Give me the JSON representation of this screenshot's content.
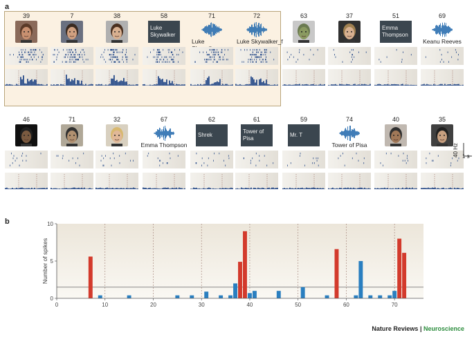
{
  "panel_a_label": "a",
  "panel_b_label": "b",
  "row1": [
    {
      "num": "39",
      "kind": "face",
      "skin": "#c89070",
      "hair": "#5a3a28",
      "bg": "#8a6a5a"
    },
    {
      "num": "7",
      "kind": "face",
      "skin": "#d0a080",
      "hair": "#3a2a20",
      "bg": "#6a7080"
    },
    {
      "num": "38",
      "kind": "face",
      "skin": "#d8b090",
      "hair": "#4a3020",
      "bg": "#b0b0b0"
    },
    {
      "num": "58",
      "kind": "name",
      "text": "Luke Skywalker"
    },
    {
      "num": "71",
      "kind": "wave",
      "text": "Luke Skywalker_m"
    },
    {
      "num": "72",
      "kind": "wave",
      "text": "Luke Skywalker_f"
    },
    {
      "num": "63",
      "kind": "face",
      "skin": "#8a9a60",
      "hair": "#6a7a50",
      "bg": "#c8c8c8"
    },
    {
      "num": "37",
      "kind": "face",
      "skin": "#d8b090",
      "hair": "#a08050",
      "bg": "#303030"
    },
    {
      "num": "51",
      "kind": "name",
      "text": "Emma Thompson"
    },
    {
      "num": "69",
      "kind": "wave",
      "text": "Keanu Reeves"
    }
  ],
  "row2": [
    {
      "num": "46",
      "kind": "face",
      "skin": "#7a5a40",
      "hair": "#202020",
      "bg": "#101010"
    },
    {
      "num": "71",
      "kind": "face",
      "skin": "#b09070",
      "hair": "#303030",
      "bg": "#b0a898"
    },
    {
      "num": "32",
      "kind": "face",
      "skin": "#e0b898",
      "hair": "#d8b870",
      "bg": "#d8d0c0"
    },
    {
      "num": "67",
      "kind": "wave",
      "text": "Emma Thompson"
    },
    {
      "num": "62",
      "kind": "name",
      "text": "Shrek"
    },
    {
      "num": "61",
      "kind": "name",
      "text": "Tower of Pisa"
    },
    {
      "num": "59",
      "kind": "name",
      "text": "Mr. T"
    },
    {
      "num": "74",
      "kind": "wave",
      "text": "Tower of Pisa"
    },
    {
      "num": "40",
      "kind": "face",
      "skin": "#a07858",
      "hair": "#303030",
      "bg": "#c0b8b0"
    },
    {
      "num": "35",
      "kind": "face",
      "skin": "#c8a080",
      "hair": "#202020",
      "bg": "#404040"
    }
  ],
  "scale": {
    "rate": "40 Hz",
    "time": "1 s"
  },
  "chart_data": {
    "type": "bar",
    "xlabel": "Picture number",
    "ylabel": "Number of spikes",
    "xlim": [
      0,
      76
    ],
    "ylim": [
      0,
      10
    ],
    "xticks": [
      0,
      10,
      20,
      30,
      40,
      50,
      60,
      70
    ],
    "yticks": [
      0,
      5,
      10
    ],
    "threshold": 1.5,
    "dashed_x": [
      10,
      20,
      30,
      40,
      50,
      60,
      70
    ],
    "bars": [
      {
        "x": 7,
        "y": 5.6,
        "responsive": true
      },
      {
        "x": 9,
        "y": 0.4,
        "responsive": false
      },
      {
        "x": 15,
        "y": 0.4,
        "responsive": false
      },
      {
        "x": 25,
        "y": 0.4,
        "responsive": false
      },
      {
        "x": 28,
        "y": 0.4,
        "responsive": false
      },
      {
        "x": 31,
        "y": 0.9,
        "responsive": false
      },
      {
        "x": 34,
        "y": 0.4,
        "responsive": false
      },
      {
        "x": 36,
        "y": 0.4,
        "responsive": false
      },
      {
        "x": 37,
        "y": 2.0,
        "responsive": false
      },
      {
        "x": 38,
        "y": 4.9,
        "responsive": true
      },
      {
        "x": 39,
        "y": 9.0,
        "responsive": true
      },
      {
        "x": 40,
        "y": 0.7,
        "responsive": false
      },
      {
        "x": 41,
        "y": 1.0,
        "responsive": false
      },
      {
        "x": 46,
        "y": 1.0,
        "responsive": false
      },
      {
        "x": 51,
        "y": 1.5,
        "responsive": false
      },
      {
        "x": 56,
        "y": 0.4,
        "responsive": false
      },
      {
        "x": 58,
        "y": 6.6,
        "responsive": true
      },
      {
        "x": 62,
        "y": 0.4,
        "responsive": false
      },
      {
        "x": 63,
        "y": 5.0,
        "responsive": false
      },
      {
        "x": 65,
        "y": 0.4,
        "responsive": false
      },
      {
        "x": 67,
        "y": 0.4,
        "responsive": false
      },
      {
        "x": 69,
        "y": 0.4,
        "responsive": false
      },
      {
        "x": 70,
        "y": 1.0,
        "responsive": false
      },
      {
        "x": 71,
        "y": 8.0,
        "responsive": true
      },
      {
        "x": 72,
        "y": 6.1,
        "responsive": true
      }
    ],
    "colors": {
      "responsive": "#d33a2c",
      "other": "#2a7fc0",
      "axis": "#555555",
      "bg": "#f1ede4"
    }
  },
  "footer": {
    "brand1": "Nature Reviews",
    "sep": " | ",
    "brand2": "Neuroscience"
  }
}
